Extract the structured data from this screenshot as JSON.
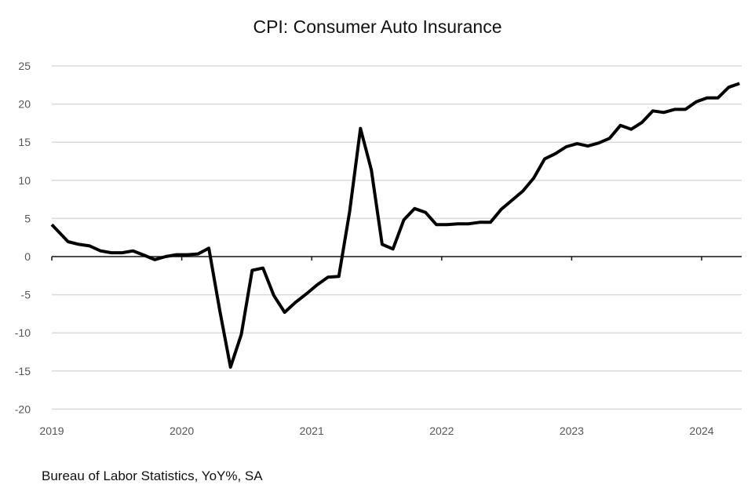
{
  "chart_data": {
    "type": "line",
    "title": "CPI: Consumer Auto Insurance",
    "source_note": "Bureau of Labor Statistics, YoY%, SA",
    "xlabel": "",
    "ylabel": "",
    "ylim": [
      -20,
      25
    ],
    "yticks": [
      25,
      20,
      15,
      10,
      5,
      0,
      -5,
      -10,
      -15,
      -20
    ],
    "xticks": [
      "2019",
      "2020",
      "2021",
      "2022",
      "2023",
      "2024"
    ],
    "x_start": "2019-01",
    "x_frequency": "monthly",
    "grid": true,
    "legend": "none",
    "series": [
      {
        "name": "CPI: Consumer Auto Insurance YoY%",
        "color": "#000000",
        "values": [
          4.2,
          1.95,
          1.6,
          1.4,
          0.75,
          0.5,
          0.5,
          0.75,
          0.2,
          -0.4,
          0.0,
          0.25,
          0.25,
          0.35,
          1.1,
          -7.0,
          -14.5,
          -10.2,
          -1.8,
          -1.5,
          -5.1,
          -7.3,
          -6.0,
          -4.9,
          -3.7,
          -2.7,
          -2.6,
          5.9,
          16.8,
          11.4,
          1.6,
          1.0,
          4.8,
          6.3,
          5.8,
          4.2,
          4.2,
          4.3,
          4.3,
          4.5,
          4.5,
          6.2,
          7.4,
          8.6,
          10.3,
          12.8,
          13.5,
          14.4,
          14.8,
          14.5,
          14.9,
          15.5,
          17.2,
          16.7,
          17.6,
          19.1,
          18.9,
          19.3,
          19.3,
          20.3,
          20.8,
          20.8,
          22.2,
          22.7
        ]
      }
    ]
  }
}
